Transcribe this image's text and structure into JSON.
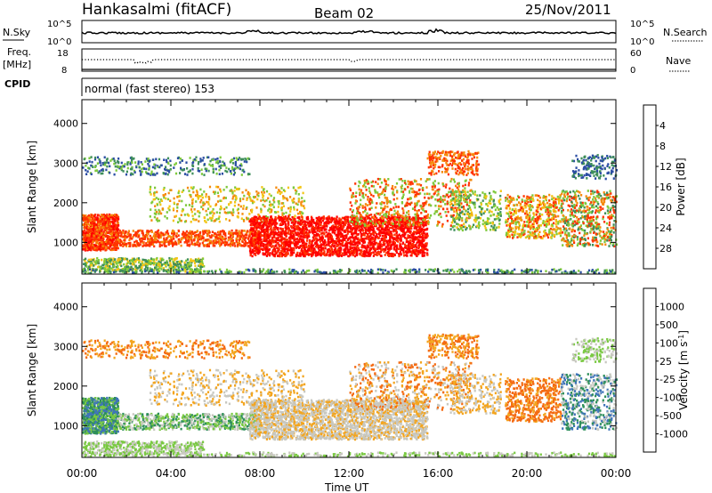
{
  "header": {
    "title": "Hankasalmi (fitACF)",
    "beam": "Beam 02",
    "date": "25/Nov/2011"
  },
  "summary_panels": {
    "nsky": {
      "label": "N.Sky",
      "right_label": "N.Search",
      "left_ticks": [
        "10^5",
        "10^0"
      ],
      "right_ticks": [
        "10^5",
        "10^0"
      ]
    },
    "freq": {
      "label_line1": "Freq.",
      "label_line2": "[MHz]",
      "right_label": "Nave",
      "left_ticks": [
        "18",
        "8"
      ],
      "right_ticks": [
        "60",
        "0"
      ]
    },
    "cpid": {
      "label": "CPID",
      "value": "normal (fast stereo) 153"
    }
  },
  "chart_data": [
    {
      "type": "heatmap",
      "name": "power",
      "ylabel": "Slant Range [km]",
      "yticks": [
        1000,
        2000,
        3000,
        4000
      ],
      "ylim": [
        200,
        4600
      ],
      "xlabel": "",
      "colorbar": {
        "label": "Power [dB]",
        "ticks": [
          "4",
          "8",
          "12",
          "16",
          "20",
          "24",
          "28"
        ],
        "colors": [
          "#0000ff",
          "#2a4ca3",
          "#3e8e5a",
          "#7ec93b",
          "#f3c515",
          "#f58a0d",
          "#ff3300",
          "#ff0000"
        ]
      }
    },
    {
      "type": "heatmap",
      "name": "velocity",
      "ylabel": "Slant Range [km]",
      "yticks": [
        1000,
        2000,
        3000,
        4000
      ],
      "ylim": [
        200,
        4600
      ],
      "xlabel": "Time UT",
      "xticks": [
        "00:00",
        "04:00",
        "08:00",
        "12:00",
        "16:00",
        "20:00",
        "00:00"
      ],
      "colorbar": {
        "label_main": "Velocity",
        "label_unit": "[m s",
        "label_exp": "-1",
        "label_close": "]",
        "ticks": [
          "1000",
          "500",
          "100",
          "25",
          "-25",
          "-100",
          "-500",
          "-1000"
        ],
        "colors": [
          "#2448a8",
          "#3f74b8",
          "#2e8f5a",
          "#7ac943",
          "#c8c8c0",
          "#f3a51f",
          "#f46a12",
          "#ff2a00",
          "#ff0000"
        ]
      }
    }
  ]
}
